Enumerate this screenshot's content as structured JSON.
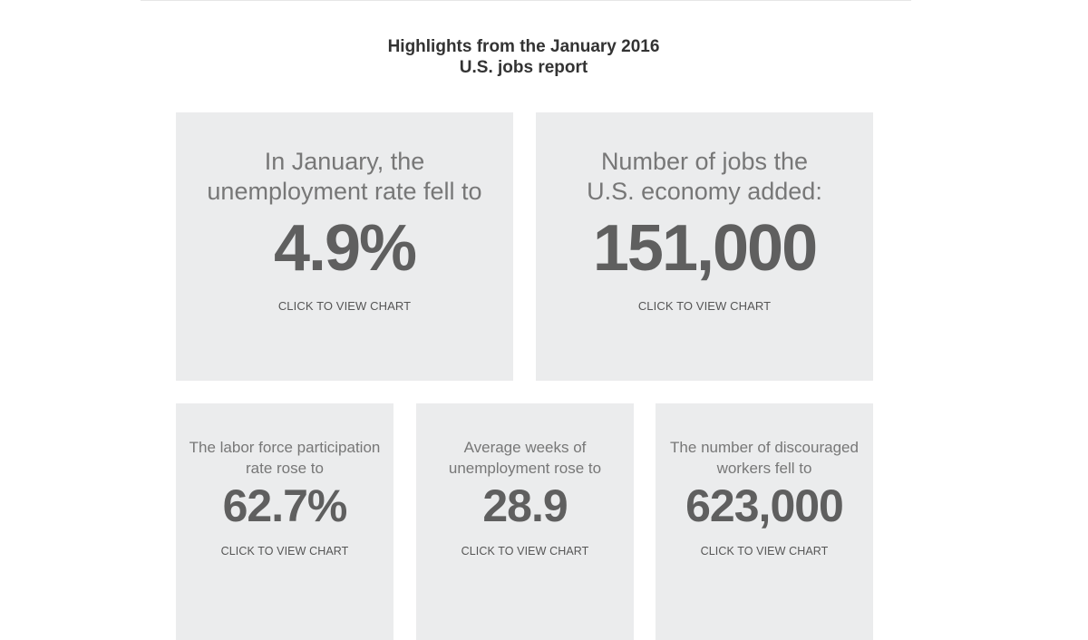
{
  "header": {
    "title_line1": "Highlights from the January 2016",
    "title_line2": "U.S. jobs report"
  },
  "cards": [
    {
      "lead": "In January, the unemployment rate fell to",
      "value": "4.9%",
      "cta": "CLICK TO VIEW CHART"
    },
    {
      "lead": "Number of jobs the U.S. economy added:",
      "value": "151,000",
      "cta": "CLICK TO VIEW CHART"
    },
    {
      "lead": "The labor force participation rate rose to",
      "value": "62.7%",
      "cta": "CLICK TO VIEW CHART"
    },
    {
      "lead": "Average weeks of unemployment rose to",
      "value": "28.9",
      "cta": "CLICK TO VIEW CHART"
    },
    {
      "lead": "The number of discouraged workers fell to",
      "value": "623,000",
      "cta": "CLICK TO VIEW CHART"
    }
  ]
}
